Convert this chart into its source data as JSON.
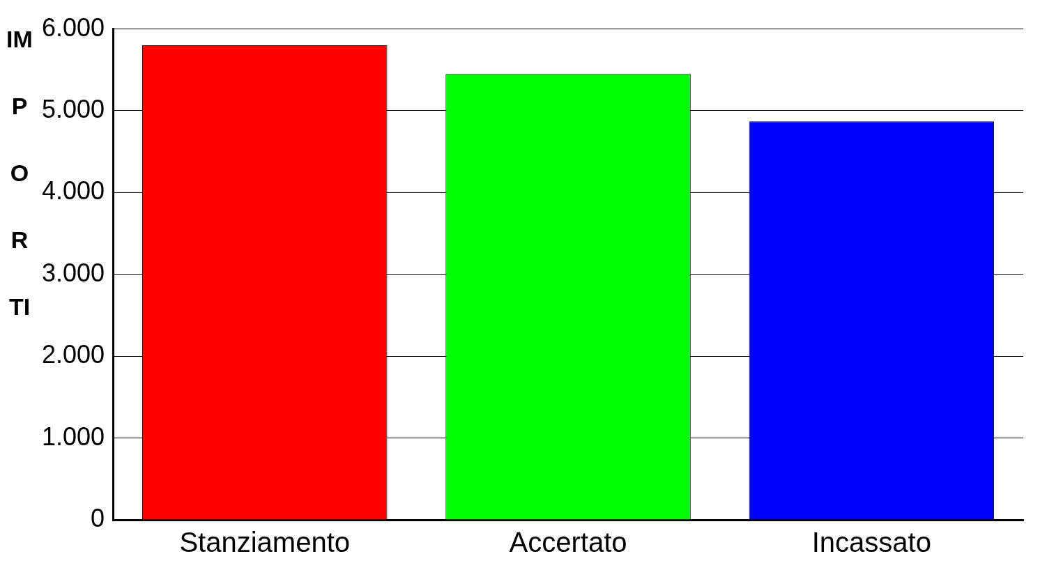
{
  "chart_data": {
    "type": "bar",
    "ylabel": "IMPORTI",
    "categories": [
      "Stanziamento",
      "Accertato",
      "Incassato"
    ],
    "values": [
      5800,
      5450,
      4870
    ],
    "colors": [
      "#ff0000",
      "#00ff00",
      "#0000ff"
    ],
    "ylim": [
      0,
      6000
    ],
    "yticks": [
      {
        "value": 0,
        "label": "0"
      },
      {
        "value": 1000,
        "label": "1.000"
      },
      {
        "value": 2000,
        "label": "2.000"
      },
      {
        "value": 3000,
        "label": "3.000"
      },
      {
        "value": 4000,
        "label": "4.000"
      },
      {
        "value": 5000,
        "label": "5.000"
      },
      {
        "value": 6000,
        "label": "6.000"
      }
    ],
    "grid": "y",
    "legend": false
  }
}
